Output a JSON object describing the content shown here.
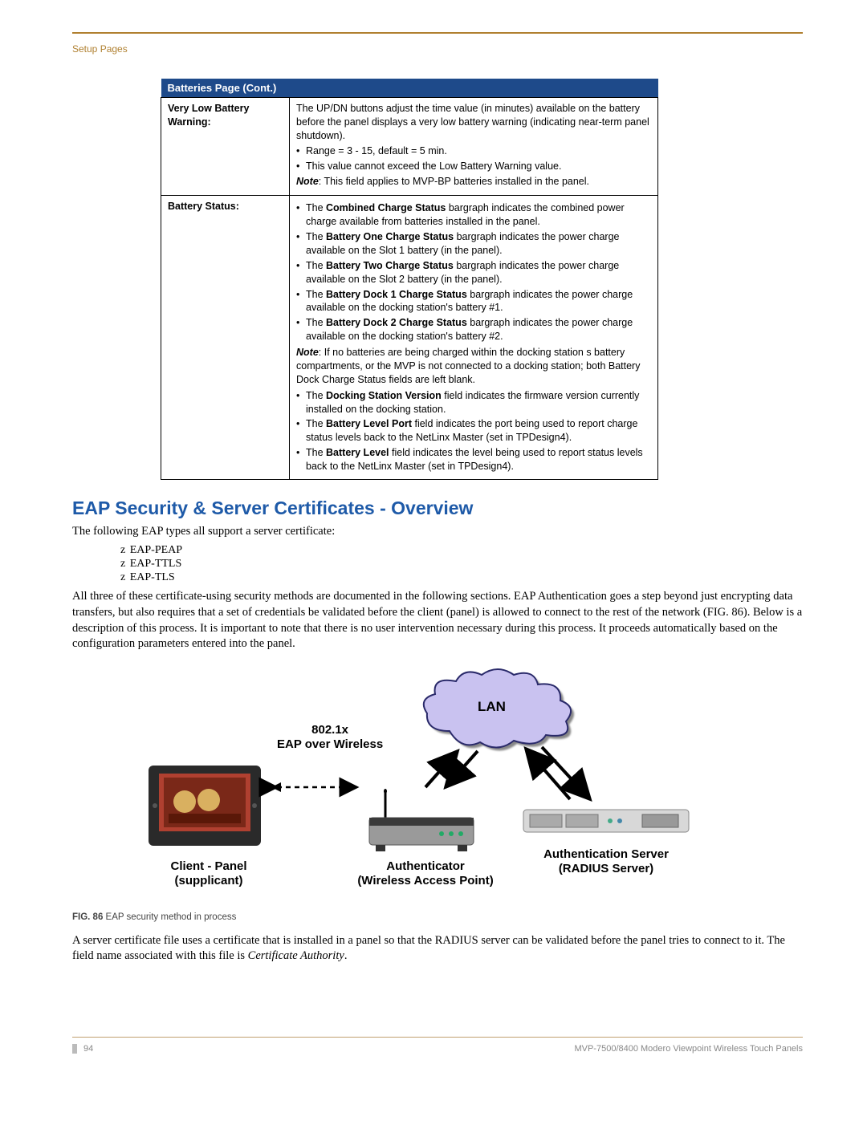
{
  "breadcrumb": "Setup Pages",
  "table": {
    "header": "Batteries Page (Cont.)",
    "rows": [
      {
        "label": "Very Low Battery Warning:",
        "intro": "The UP/DN buttons adjust the time value (in minutes) available on the battery before the panel displays a very low battery warning (indicating near-term panel shutdown).",
        "bullets": [
          {
            "text": "Range = 3 - 15, default = 5 min."
          },
          {
            "text": "This value cannot exceed the Low Battery Warning value."
          }
        ],
        "note_prefix": "Note",
        "note": ": This field applies to MVP-BP batteries installed in the panel."
      },
      {
        "label": "Battery Status:",
        "bullets2": [
          {
            "pre": "The ",
            "b": "Combined Charge Status",
            "post": " bargraph indicates the combined power charge available from batteries installed in the panel."
          },
          {
            "pre": "The ",
            "b": "Battery One Charge Status",
            "post": " bargraph indicates the power charge available on the Slot 1 battery (in the panel)."
          },
          {
            "pre": "The ",
            "b": "Battery Two Charge Status",
            "post": " bargraph indicates the power charge available on the Slot 2 battery (in the panel)."
          },
          {
            "pre": "The ",
            "b": "Battery Dock 1 Charge Status",
            "post": " bargraph indicates the power charge available on the docking station's battery #1."
          },
          {
            "pre": "The ",
            "b": "Battery Dock 2 Charge Status",
            "post": " bargraph indicates the power charge available on the docking station's battery #2."
          }
        ],
        "note2_prefix": "Note",
        "note2": ": If no batteries are being charged within the docking station s battery compartments, or the MVP is not connected to a docking station; both Battery Dock Charge Status fields are left blank.",
        "bullets3": [
          {
            "pre": "The ",
            "b": "Docking Station Version",
            "post": " field indicates the firmware version currently installed on the docking station."
          },
          {
            "pre": "The ",
            "b": "Battery Level Port",
            "post": " field indicates the port being used to report charge status levels back to the NetLinx Master (set in TPDesign4)."
          },
          {
            "pre": "The ",
            "b": "Battery Level",
            "post": " field indicates the level being used to report status levels back to the NetLinx Master (set in TPDesign4)."
          }
        ]
      }
    ]
  },
  "section_title": "EAP Security & Server Certificates - Overview",
  "para1": "The following EAP types all support a server certificate:",
  "eap_list": [
    "EAP-PEAP",
    "EAP-TTLS",
    "EAP-TLS"
  ],
  "para2": "All three of these certificate-using security methods are documented in the following sections. EAP Authentication goes a step beyond just encrypting data transfers, but also requires that a set of credentials be validated before the client (panel) is allowed to connect to the rest of the network (FIG. 86). Below is a description of this process. It is important to note that there is no user intervention necessary during this process. It proceeds automatically based on the configuration parameters entered into the panel.",
  "figure": {
    "cloud_label": "LAN",
    "eap_label_l1": "802.1x",
    "eap_label_l2": "EAP over Wireless",
    "client_l1": "Client - Panel",
    "client_l2": "(supplicant)",
    "auth_l1": "Authenticator",
    "auth_l2": "(Wireless Access Point)",
    "srv_l1": "Authentication Server",
    "srv_l2": "(RADIUS Server)",
    "caption_num": "FIG. 86",
    "caption_text": "  EAP security method in process",
    "colors": {
      "cloud_fill": "#c9c2f0",
      "cloud_stroke": "#2a2a6a",
      "arrow": "#000000",
      "panel_frame": "#2a2a2a",
      "panel_screen": "#b04030",
      "ap_body": "#9a9a9a",
      "server_body": "#d8d8d8"
    }
  },
  "para3_pre": "A server certificate file uses a certificate that is installed in a panel so that the RADIUS server can be validated before the panel tries to connect to it. The field name associated with this file is ",
  "para3_ital": "Certificate Authority",
  "para3_post": ".",
  "footer": {
    "page": "94",
    "title": "MVP-7500/8400 Modero Viewpoint Wireless Touch Panels"
  }
}
